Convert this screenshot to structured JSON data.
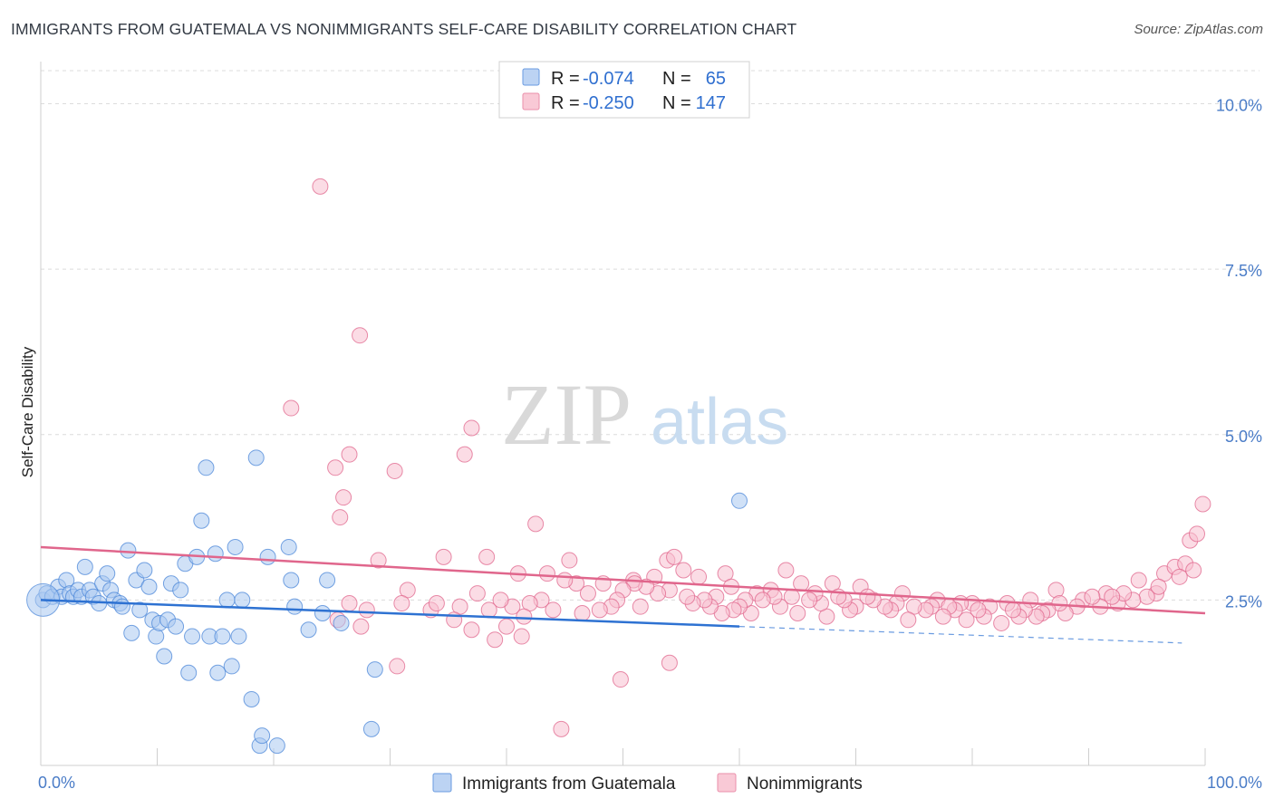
{
  "title": "IMMIGRANTS FROM GUATEMALA VS NONIMMIGRANTS SELF-CARE DISABILITY CORRELATION CHART",
  "source": "Source: ZipAtlas.com",
  "watermark": {
    "zip": "ZIP",
    "atlas": "atlas"
  },
  "legend": {
    "rows": [
      {
        "r_label": "R =",
        "r_value": "-0.074",
        "n_label": "N =",
        "n_value": "65",
        "color": "#9cc2ee"
      },
      {
        "r_label": "R =",
        "r_value": "-0.250",
        "n_label": "N =",
        "n_value": "147",
        "color": "#f5b3c6"
      }
    ]
  },
  "chart_data": {
    "type": "scatter",
    "title": "IMMIGRANTS FROM GUATEMALA VS NONIMMIGRANTS SELF-CARE DISABILITY CORRELATION CHART",
    "xlabel": "",
    "ylabel": "Self-Care Disability",
    "xlim": [
      0,
      100
    ],
    "ylim": [
      0.0,
      10.5
    ],
    "x_tick_labels": [
      "0.0%",
      "100.0%"
    ],
    "y_ticks": [
      2.5,
      5.0,
      7.5,
      10.0
    ],
    "y_tick_labels": [
      "2.5%",
      "5.0%",
      "7.5%",
      "10.0%"
    ],
    "grid": true,
    "legend_position": "top-center",
    "series": [
      {
        "name": "Immigrants from Guatemala",
        "color": "#4a86d8",
        "fill": "#a9c8f0",
        "trend": {
          "x0": 0,
          "y0": 2.5,
          "x1": 60,
          "y1": 2.1,
          "dashed_to": 98,
          "dashed_y": 1.85
        },
        "points": [
          [
            0.2,
            2.5
          ],
          [
            0.5,
            2.6
          ],
          [
            1.0,
            2.55
          ],
          [
            1.5,
            2.7
          ],
          [
            1.8,
            2.55
          ],
          [
            2.2,
            2.8
          ],
          [
            2.5,
            2.6
          ],
          [
            2.8,
            2.55
          ],
          [
            3.2,
            2.65
          ],
          [
            3.5,
            2.55
          ],
          [
            3.8,
            3.0
          ],
          [
            4.2,
            2.65
          ],
          [
            4.5,
            2.55
          ],
          [
            5.0,
            2.45
          ],
          [
            5.3,
            2.75
          ],
          [
            5.7,
            2.9
          ],
          [
            6.0,
            2.65
          ],
          [
            6.3,
            2.5
          ],
          [
            6.8,
            2.45
          ],
          [
            7.0,
            2.4
          ],
          [
            7.5,
            3.25
          ],
          [
            7.8,
            2.0
          ],
          [
            8.2,
            2.8
          ],
          [
            8.5,
            2.35
          ],
          [
            8.9,
            2.95
          ],
          [
            9.3,
            2.7
          ],
          [
            9.6,
            2.2
          ],
          [
            9.9,
            1.95
          ],
          [
            10.2,
            2.15
          ],
          [
            10.6,
            1.65
          ],
          [
            10.9,
            2.2
          ],
          [
            11.2,
            2.75
          ],
          [
            11.6,
            2.1
          ],
          [
            12.0,
            2.65
          ],
          [
            12.4,
            3.05
          ],
          [
            12.7,
            1.4
          ],
          [
            13.0,
            1.95
          ],
          [
            13.4,
            3.15
          ],
          [
            13.8,
            3.7
          ],
          [
            14.2,
            4.5
          ],
          [
            14.5,
            1.95
          ],
          [
            15.0,
            3.2
          ],
          [
            15.2,
            1.4
          ],
          [
            15.6,
            1.95
          ],
          [
            16.0,
            2.5
          ],
          [
            16.4,
            1.5
          ],
          [
            16.7,
            3.3
          ],
          [
            17.0,
            1.95
          ],
          [
            17.3,
            2.5
          ],
          [
            18.1,
            1.0
          ],
          [
            18.5,
            4.65
          ],
          [
            18.8,
            0.3
          ],
          [
            19.0,
            0.45
          ],
          [
            19.5,
            3.15
          ],
          [
            20.3,
            0.3
          ],
          [
            21.5,
            2.8
          ],
          [
            21.3,
            3.3
          ],
          [
            21.8,
            2.4
          ],
          [
            23.0,
            2.05
          ],
          [
            24.2,
            2.3
          ],
          [
            24.6,
            2.8
          ],
          [
            25.8,
            2.15
          ],
          [
            28.7,
            1.45
          ],
          [
            28.4,
            0.55
          ],
          [
            60.0,
            4.0
          ]
        ]
      },
      {
        "name": "Nonimmigrants",
        "color": "#e0668c",
        "fill": "#f7bfd0",
        "trend": {
          "x0": 0,
          "y0": 3.3,
          "x1": 100,
          "y1": 2.3
        },
        "points": [
          [
            24.0,
            8.75
          ],
          [
            27.4,
            6.5
          ],
          [
            21.5,
            5.4
          ],
          [
            37.0,
            5.1
          ],
          [
            25.3,
            4.5
          ],
          [
            26.5,
            4.7
          ],
          [
            30.4,
            4.45
          ],
          [
            36.4,
            4.7
          ],
          [
            26.0,
            4.05
          ],
          [
            25.7,
            3.75
          ],
          [
            42.5,
            3.65
          ],
          [
            29.0,
            3.1
          ],
          [
            34.6,
            3.15
          ],
          [
            38.3,
            3.15
          ],
          [
            45.4,
            3.1
          ],
          [
            53.8,
            3.1
          ],
          [
            54.4,
            3.15
          ],
          [
            55.2,
            2.95
          ],
          [
            58.8,
            2.9
          ],
          [
            64.0,
            2.95
          ],
          [
            41.0,
            2.9
          ],
          [
            43.5,
            2.9
          ],
          [
            48.3,
            2.75
          ],
          [
            50.9,
            2.8
          ],
          [
            52.7,
            2.85
          ],
          [
            56.5,
            2.85
          ],
          [
            58.0,
            2.55
          ],
          [
            59.3,
            2.7
          ],
          [
            61.5,
            2.6
          ],
          [
            62.7,
            2.65
          ],
          [
            65.3,
            2.75
          ],
          [
            68.0,
            2.75
          ],
          [
            70.4,
            2.7
          ],
          [
            74.0,
            2.6
          ],
          [
            77.0,
            2.5
          ],
          [
            80.0,
            2.45
          ],
          [
            83.0,
            2.45
          ],
          [
            85.0,
            2.5
          ],
          [
            87.2,
            2.65
          ],
          [
            89.5,
            2.5
          ],
          [
            91.5,
            2.6
          ],
          [
            92.5,
            2.45
          ],
          [
            94.3,
            2.8
          ],
          [
            95.8,
            2.6
          ],
          [
            96.5,
            2.9
          ],
          [
            97.4,
            3.0
          ],
          [
            98.3,
            3.05
          ],
          [
            98.7,
            3.4
          ],
          [
            99.3,
            3.5
          ],
          [
            99.8,
            3.95
          ],
          [
            99.0,
            2.95
          ],
          [
            97.8,
            2.85
          ],
          [
            96.0,
            2.7
          ],
          [
            95.0,
            2.55
          ],
          [
            93.8,
            2.5
          ],
          [
            93.0,
            2.6
          ],
          [
            92.0,
            2.55
          ],
          [
            91.0,
            2.4
          ],
          [
            90.3,
            2.55
          ],
          [
            89.0,
            2.4
          ],
          [
            88.0,
            2.3
          ],
          [
            87.5,
            2.45
          ],
          [
            86.5,
            2.35
          ],
          [
            86.0,
            2.3
          ],
          [
            85.5,
            2.25
          ],
          [
            84.5,
            2.35
          ],
          [
            84.0,
            2.25
          ],
          [
            83.5,
            2.35
          ],
          [
            82.5,
            2.15
          ],
          [
            81.5,
            2.4
          ],
          [
            81.0,
            2.25
          ],
          [
            80.5,
            2.35
          ],
          [
            79.5,
            2.2
          ],
          [
            79.0,
            2.45
          ],
          [
            78.5,
            2.35
          ],
          [
            78.0,
            2.4
          ],
          [
            77.5,
            2.25
          ],
          [
            76.5,
            2.4
          ],
          [
            76.0,
            2.35
          ],
          [
            75.0,
            2.4
          ],
          [
            74.5,
            2.2
          ],
          [
            73.5,
            2.45
          ],
          [
            73.0,
            2.35
          ],
          [
            72.5,
            2.4
          ],
          [
            71.5,
            2.5
          ],
          [
            71.0,
            2.55
          ],
          [
            70.0,
            2.4
          ],
          [
            69.5,
            2.35
          ],
          [
            69.0,
            2.5
          ],
          [
            68.5,
            2.55
          ],
          [
            67.5,
            2.25
          ],
          [
            67.0,
            2.45
          ],
          [
            66.5,
            2.6
          ],
          [
            66.0,
            2.5
          ],
          [
            65.0,
            2.3
          ],
          [
            64.5,
            2.55
          ],
          [
            63.5,
            2.4
          ],
          [
            63.0,
            2.55
          ],
          [
            62.0,
            2.5
          ],
          [
            61.0,
            2.3
          ],
          [
            60.5,
            2.5
          ],
          [
            60.0,
            2.4
          ],
          [
            59.5,
            2.35
          ],
          [
            58.5,
            2.3
          ],
          [
            57.5,
            2.4
          ],
          [
            57.0,
            2.5
          ],
          [
            56.0,
            2.45
          ],
          [
            55.5,
            2.55
          ],
          [
            54.0,
            2.65
          ],
          [
            53.0,
            2.6
          ],
          [
            52.0,
            2.7
          ],
          [
            51.5,
            2.4
          ],
          [
            51.0,
            2.75
          ],
          [
            50.0,
            2.65
          ],
          [
            49.5,
            2.5
          ],
          [
            49.0,
            2.4
          ],
          [
            48.0,
            2.35
          ],
          [
            47.0,
            2.6
          ],
          [
            46.5,
            2.3
          ],
          [
            46.0,
            2.75
          ],
          [
            45.0,
            2.8
          ],
          [
            44.0,
            2.35
          ],
          [
            43.0,
            2.5
          ],
          [
            42.0,
            2.45
          ],
          [
            41.5,
            2.25
          ],
          [
            40.5,
            2.4
          ],
          [
            40.0,
            2.1
          ],
          [
            39.5,
            2.5
          ],
          [
            38.5,
            2.35
          ],
          [
            37.5,
            2.6
          ],
          [
            37.0,
            2.05
          ],
          [
            36.0,
            2.4
          ],
          [
            35.5,
            2.2
          ],
          [
            33.5,
            2.35
          ],
          [
            31.5,
            2.65
          ],
          [
            31.0,
            2.45
          ],
          [
            28.0,
            2.35
          ],
          [
            27.5,
            2.1
          ],
          [
            26.5,
            2.45
          ],
          [
            25.5,
            2.2
          ],
          [
            34.0,
            2.45
          ],
          [
            39.0,
            1.9
          ],
          [
            41.3,
            1.95
          ],
          [
            49.8,
            1.3
          ],
          [
            54.0,
            1.55
          ],
          [
            44.7,
            0.55
          ],
          [
            30.6,
            1.5
          ]
        ]
      }
    ]
  }
}
